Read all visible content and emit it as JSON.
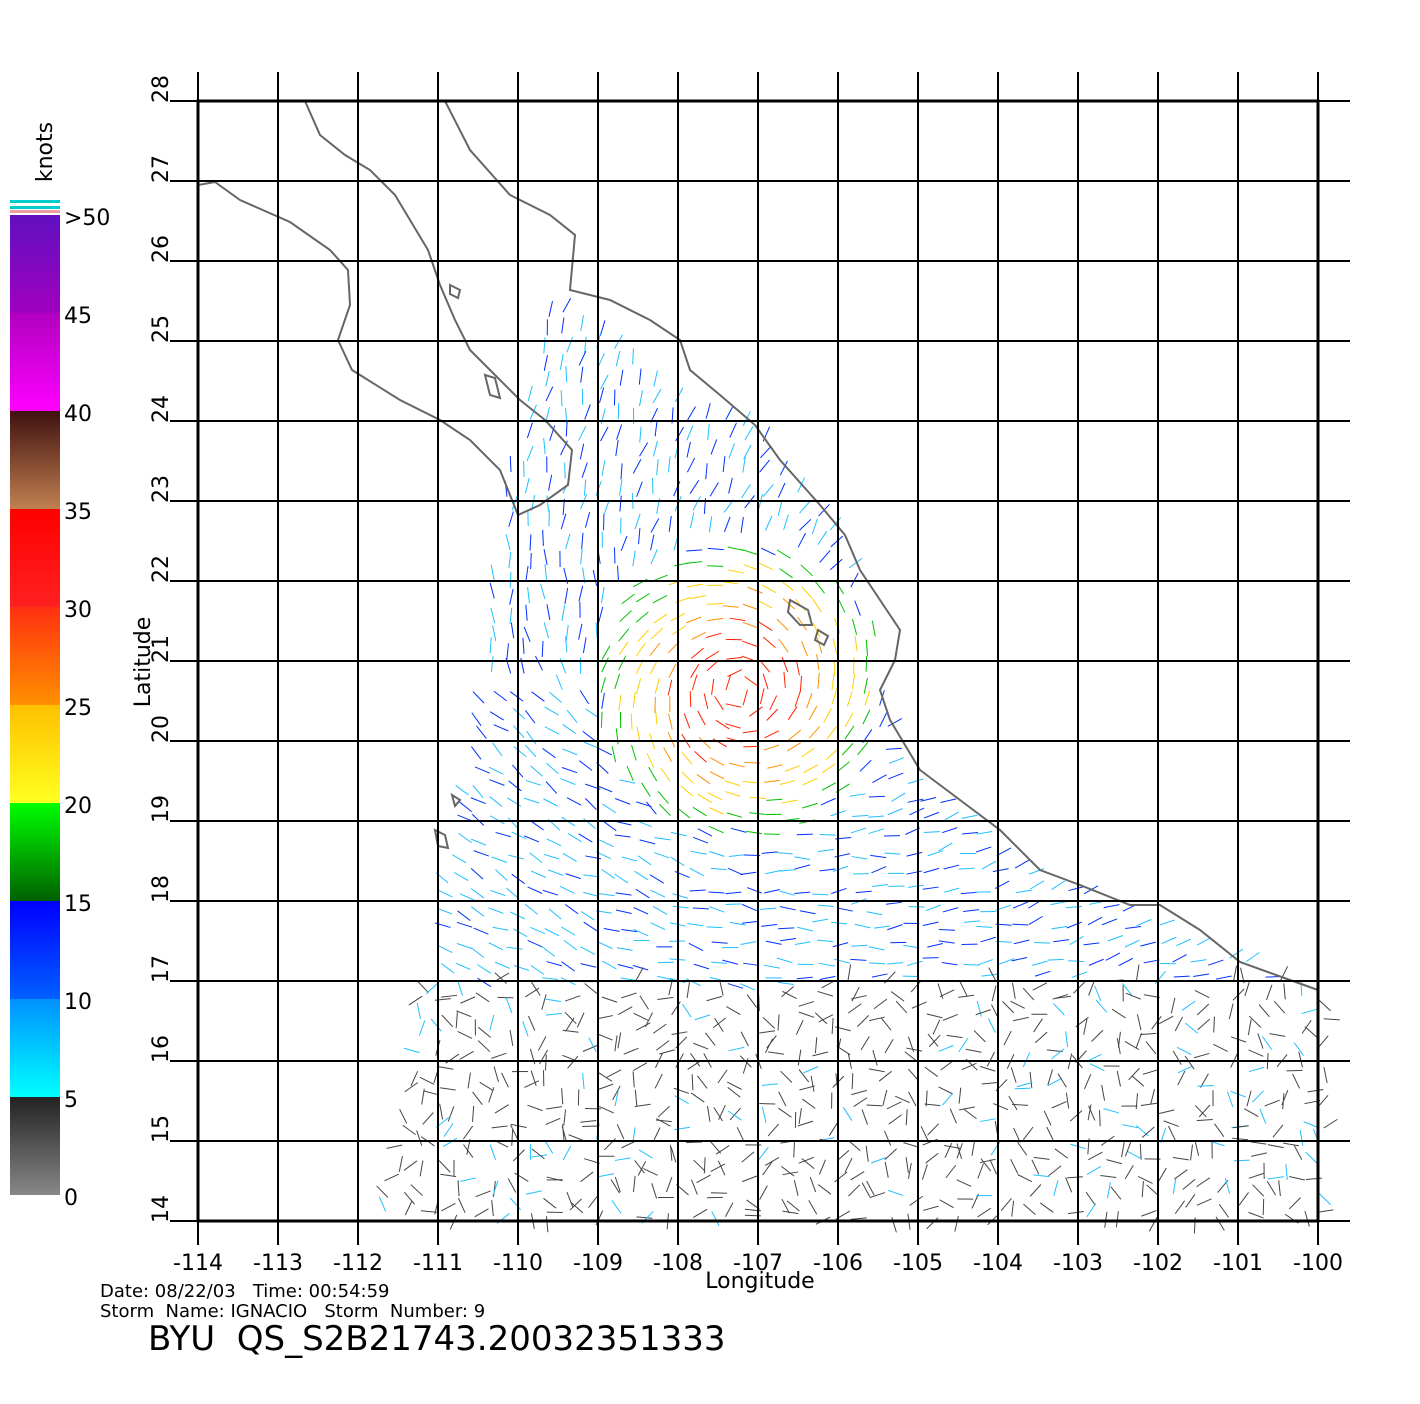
{
  "map": {
    "title": "BYU  QS_S2B21743.20032351333",
    "date_line": "Date: 08/22/03   Time: 00:54:59",
    "storm_line": "Storm  Name: IGNACIO   Storm  Number: 9",
    "x_label": "Longitude",
    "y_label": "Latitude",
    "xlim": [
      -114,
      -100
    ],
    "ylim": [
      14,
      28
    ],
    "xticks": [
      -114,
      -113,
      -112,
      -111,
      -110,
      -109,
      -108,
      -107,
      -106,
      -105,
      -104,
      -103,
      -102,
      -101,
      -100
    ],
    "yticks": [
      14,
      15,
      16,
      17,
      18,
      19,
      20,
      21,
      22,
      23,
      24,
      25,
      26,
      27,
      28
    ],
    "grid": true,
    "colorbar": {
      "title": "knots",
      "ticks": [
        0,
        5,
        10,
        15,
        20,
        25,
        30,
        35,
        40,
        45,
        {
          "value": 50,
          "label": ">50"
        }
      ],
      "colors": [
        [
          "#888888",
          "#222222"
        ],
        [
          "#00ffff",
          "#0090ff"
        ],
        [
          "#0060ff",
          "#0000ff"
        ],
        [
          "#006000",
          "#00ff00"
        ],
        [
          "#ffff20",
          "#ffc000"
        ],
        [
          "#ff9000",
          "#ff3010"
        ],
        [
          "#ff2020",
          "#ff0000"
        ],
        [
          "#c08050",
          "#401010"
        ],
        [
          "#ff00ff",
          "#b000c0"
        ],
        [
          "#a000c0",
          "#6010c0"
        ]
      ]
    }
  }
}
